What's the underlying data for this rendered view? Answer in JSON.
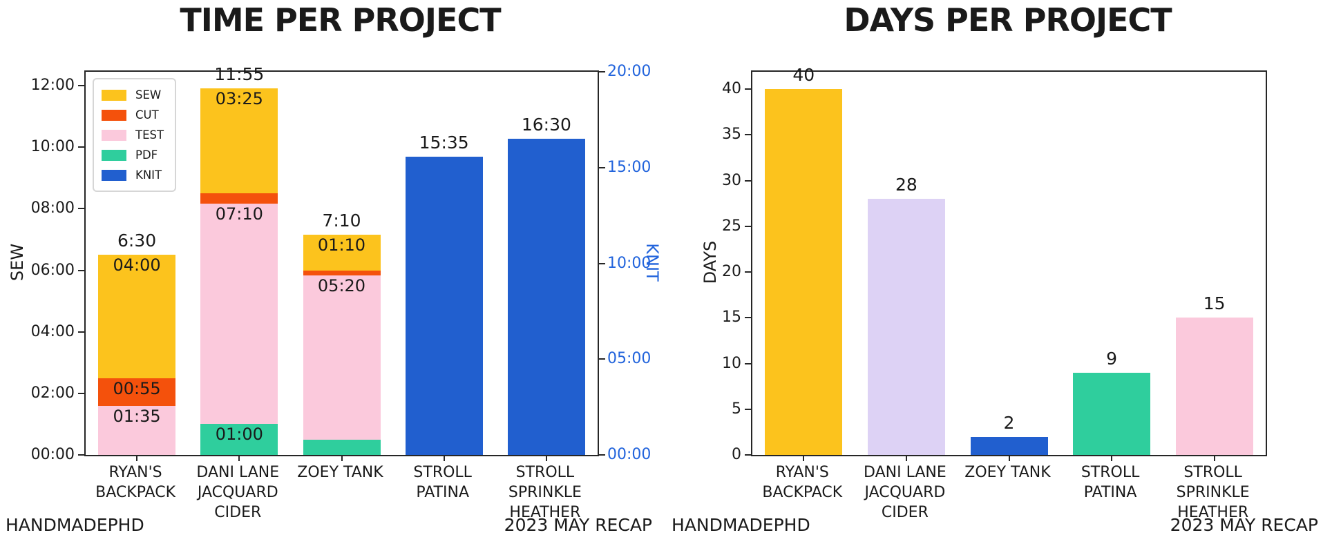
{
  "figure": {
    "footer_left": "HANDMADEPHD",
    "footer_right": "2023 MAY RECAP",
    "background": "#ffffff"
  },
  "colors": {
    "sew": "#fcc31d",
    "cut": "#f4510c",
    "test": "#fbc9dc",
    "pdf": "#2fce9d",
    "knit": "#215fcf",
    "lavender": "#ddd2f5",
    "axis_blue": "#2264dc",
    "ink": "#1a1a1a"
  },
  "chart_data": [
    {
      "type": "bar",
      "variant": "stacked_dual_axis",
      "title": "TIME PER PROJECT",
      "grid": false,
      "legend_position": "upper-left",
      "categories": [
        "RYAN'S BACKPACK",
        "DANI LANE JACQUARD CIDER",
        "ZOEY TANK",
        "STROLL PATINA",
        "STROLL SPRINKLE HEATHER"
      ],
      "left_axis": {
        "label": "SEW",
        "max_minutes": 747,
        "ticks": [
          {
            "label": "00:00",
            "minutes": 0
          },
          {
            "label": "02:00",
            "minutes": 120
          },
          {
            "label": "04:00",
            "minutes": 240
          },
          {
            "label": "06:00",
            "minutes": 360
          },
          {
            "label": "08:00",
            "minutes": 480
          },
          {
            "label": "10:00",
            "minutes": 600
          },
          {
            "label": "12:00",
            "minutes": 720
          }
        ]
      },
      "right_axis": {
        "label": "KNIT",
        "max_minutes": 1200,
        "ticks": [
          {
            "label": "00:00",
            "minutes": 0
          },
          {
            "label": "05:00",
            "minutes": 300
          },
          {
            "label": "10:00",
            "minutes": 600
          },
          {
            "label": "15:00",
            "minutes": 900
          },
          {
            "label": "20:00",
            "minutes": 1200
          }
        ]
      },
      "legend": [
        {
          "label": "SEW",
          "color_key": "sew"
        },
        {
          "label": "CUT",
          "color_key": "cut"
        },
        {
          "label": "TEST",
          "color_key": "test"
        },
        {
          "label": "PDF",
          "color_key": "pdf"
        },
        {
          "label": "KNIT",
          "color_key": "knit"
        }
      ],
      "bars": [
        {
          "category": "RYAN'S BACKPACK",
          "label_lines": [
            "RYAN'S",
            "BACKPACK"
          ],
          "axis": "left",
          "total_label": "6:30",
          "segments": [
            {
              "color_key": "test",
              "label": "01:35",
              "minutes": 95
            },
            {
              "color_key": "cut",
              "label": "00:55",
              "minutes": 55
            },
            {
              "color_key": "sew",
              "label": "04:00",
              "minutes": 240
            }
          ]
        },
        {
          "category": "DANI LANE JACQUARD CIDER",
          "label_lines": [
            "DANI LANE",
            "JACQUARD",
            "CIDER"
          ],
          "axis": "left",
          "total_label": "11:55",
          "segments": [
            {
              "color_key": "pdf",
              "label": "01:00",
              "minutes": 60
            },
            {
              "color_key": "test",
              "label": "07:10",
              "minutes": 430
            },
            {
              "color_key": "cut",
              "label": "",
              "minutes": 20
            },
            {
              "color_key": "sew",
              "label": "03:25",
              "minutes": 205
            }
          ]
        },
        {
          "category": "ZOEY TANK",
          "label_lines": [
            "ZOEY TANK"
          ],
          "axis": "left",
          "total_label": "7:10",
          "segments": [
            {
              "color_key": "pdf",
              "label": "",
              "minutes": 30
            },
            {
              "color_key": "test",
              "label": "05:20",
              "minutes": 320
            },
            {
              "color_key": "cut",
              "label": "",
              "minutes": 10
            },
            {
              "color_key": "sew",
              "label": "01:10",
              "minutes": 70
            }
          ]
        },
        {
          "category": "STROLL PATINA",
          "label_lines": [
            "STROLL",
            "PATINA"
          ],
          "axis": "right",
          "total_label": "15:35",
          "segments": [
            {
              "color_key": "knit",
              "label": "",
              "minutes": 935
            }
          ]
        },
        {
          "category": "STROLL SPRINKLE HEATHER",
          "label_lines": [
            "STROLL",
            "SPRINKLE",
            "HEATHER"
          ],
          "axis": "right",
          "total_label": "16:30",
          "segments": [
            {
              "color_key": "knit",
              "label": "",
              "minutes": 990
            }
          ]
        }
      ]
    },
    {
      "type": "bar",
      "title": "DAYS PER PROJECT",
      "ylabel": "DAYS",
      "grid": false,
      "ylim": [
        0,
        41.9
      ],
      "yticks": [
        0,
        5,
        10,
        15,
        20,
        25,
        30,
        35,
        40
      ],
      "categories": [
        "RYAN'S BACKPACK",
        "DANI LANE JACQUARD CIDER",
        "ZOEY TANK",
        "STROLL PATINA",
        "STROLL SPRINKLE HEATHER"
      ],
      "label_lines": [
        [
          "RYAN'S",
          "BACKPACK"
        ],
        [
          "DANI LANE",
          "JACQUARD",
          "CIDER"
        ],
        [
          "ZOEY TANK"
        ],
        [
          "STROLL",
          "PATINA"
        ],
        [
          "STROLL",
          "SPRINKLE",
          "HEATHER"
        ]
      ],
      "values": [
        40,
        28,
        2,
        9,
        15
      ],
      "value_labels": [
        "40",
        "28",
        "2",
        "9",
        "15"
      ],
      "bar_color_keys": [
        "sew",
        "lavender",
        "knit",
        "pdf",
        "test"
      ]
    }
  ]
}
